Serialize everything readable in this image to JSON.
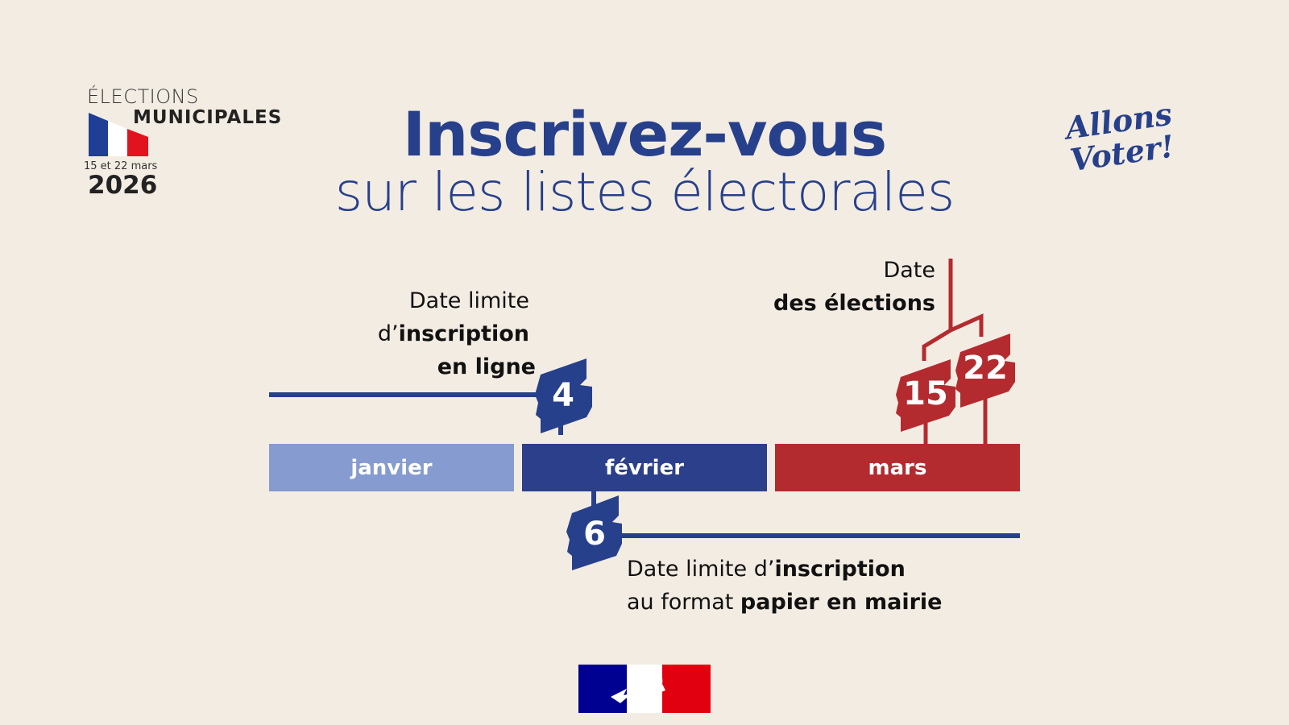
{
  "logo": {
    "line1": "ÉLECTIONS",
    "line2": "MUNICIPALES",
    "dates": "15 et 22 mars",
    "year": "2026"
  },
  "slogan": "Allons Voter!",
  "title": {
    "line1": "Inscrivez-vous",
    "line2": "sur les listes électorales"
  },
  "months": [
    {
      "label": "janvier",
      "color": "#869bcf"
    },
    {
      "label": "février",
      "color": "#2b3f8a"
    },
    {
      "label": "mars",
      "color": "#b42b2f"
    }
  ],
  "markers": {
    "online": {
      "day": "4",
      "text1": "Date limite",
      "text2_pre": "d’",
      "text2_bold": "inscription",
      "text3_bold": "en ligne",
      "color": "#27408b"
    },
    "paper": {
      "day": "6",
      "line1_pre": "Date limite d’",
      "line1_bold": "inscription",
      "line2_pre": "au format ",
      "line2_bold": "papier en mairie",
      "color": "#27408b"
    },
    "election": {
      "day1": "15",
      "day2": "22",
      "text1": "Date",
      "text2_bold": "des élections",
      "color": "#b42b2f"
    }
  }
}
